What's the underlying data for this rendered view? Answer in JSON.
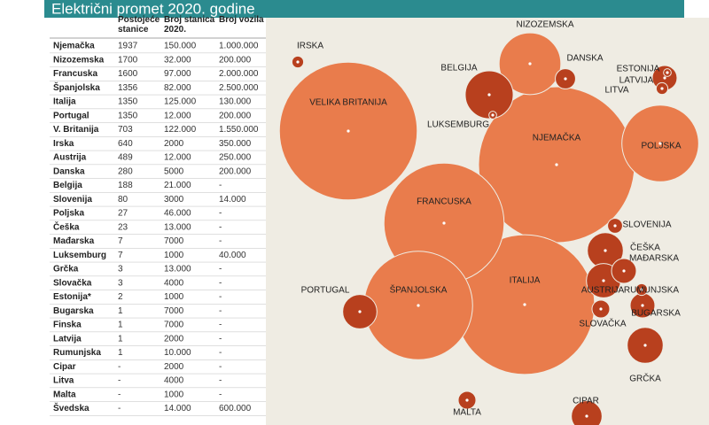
{
  "header": {
    "title": "Električni promet 2020. godine"
  },
  "table": {
    "columns": [
      "",
      "Postojeće\nstanice",
      "Broj stanica\n2020.",
      "Broj vozila"
    ],
    "rows": [
      [
        "Njemačka",
        "1937",
        "150.000",
        "1.000.000"
      ],
      [
        "Nizozemska",
        "1700",
        "32.000",
        "200.000"
      ],
      [
        "Francuska",
        "1600",
        "97.000",
        "2.000.000"
      ],
      [
        "Španjolska",
        "1356",
        "82.000",
        "2.500.000"
      ],
      [
        "Italija",
        "1350",
        "125.000",
        "130.000"
      ],
      [
        "Portugal",
        "1350",
        "12.000",
        "200.000"
      ],
      [
        "V. Britanija",
        "703",
        "122.000",
        "1.550.000"
      ],
      [
        "Irska",
        "640",
        "2000",
        "350.000"
      ],
      [
        "Austrija",
        "489",
        "12.000",
        "250.000"
      ],
      [
        "Danska",
        "280",
        "5000",
        "200.000"
      ],
      [
        "Belgija",
        "188",
        "21.000",
        "-"
      ],
      [
        "Slovenija",
        "80",
        "3000",
        "14.000"
      ],
      [
        "Poljska",
        "27",
        "46.000",
        "-"
      ],
      [
        "Češka",
        "23",
        "13.000",
        "-"
      ],
      [
        "Mađarska",
        "7",
        "7000",
        "-"
      ],
      [
        "Luksemburg",
        "7",
        "1000",
        "40.000"
      ],
      [
        "Grčka",
        "3",
        "13.000",
        "-"
      ],
      [
        "Slovačka",
        "3",
        "4000",
        "-"
      ],
      [
        "Estonija*",
        "2",
        "1000",
        "-"
      ],
      [
        "Bugarska",
        "1",
        "7000",
        "-"
      ],
      [
        "Finska",
        "1",
        "7000",
        "-"
      ],
      [
        "Latvija",
        "1",
        "2000",
        "-"
      ],
      [
        "Rumunjska",
        "1",
        "10.000",
        "-"
      ],
      [
        "Cipar",
        "-",
        "2000",
        "-"
      ],
      [
        "Litva",
        "-",
        "4000",
        "-"
      ],
      [
        "Malta",
        "-",
        "1000",
        "-"
      ],
      [
        "Švedska",
        "-",
        "14.000",
        "600.000"
      ]
    ]
  },
  "map": {
    "labels": [
      {
        "text": "NJEMAČKA",
        "color": "#e97c4c"
      },
      {
        "text": "NIZOZEMSKA",
        "color": "#e97c4c"
      },
      {
        "text": "FRANCUSKA",
        "color": "#e97c4c"
      },
      {
        "text": "ŠPANJOLSKA",
        "color": "#e97c4c"
      },
      {
        "text": "ITALIJA",
        "color": "#e97c4c"
      },
      {
        "text": "PORTUGAL",
        "color": "#b8401e"
      },
      {
        "text": "VELIKA BRITANIJA",
        "color": "#e97c4c"
      },
      {
        "text": "IRSKA",
        "color": "#b8401e"
      },
      {
        "text": "AUSTRIJA",
        "color": "#b8401e"
      },
      {
        "text": "DANSKA",
        "color": "#b8401e"
      },
      {
        "text": "BELGIJA",
        "color": "#b8401e"
      },
      {
        "text": "SLOVENIJA",
        "color": "#b8401e"
      },
      {
        "text": "POLJSKA",
        "color": "#e97c4c"
      },
      {
        "text": "ČEŠKA",
        "color": "#b8401e"
      },
      {
        "text": "MAĐARSKA",
        "color": "#b8401e"
      },
      {
        "text": "LUKSEMBURG",
        "color": "#b8401e"
      },
      {
        "text": "GRČKA",
        "color": "#b8401e"
      },
      {
        "text": "SLOVAČKA",
        "color": "#b8401e"
      },
      {
        "text": "ESTONIJA",
        "color": "#b8401e"
      },
      {
        "text": "BUGARSKA",
        "color": "#b8401e"
      },
      {
        "text": "LATVIJA",
        "color": "#b8401e"
      },
      {
        "text": "RUMUNJSKA",
        "color": "#b8401e"
      },
      {
        "text": "CIPAR",
        "color": "#b8401e"
      },
      {
        "text": "LITVA",
        "color": "#b8401e"
      },
      {
        "text": "MALTA",
        "color": "#b8401e"
      }
    ]
  }
}
